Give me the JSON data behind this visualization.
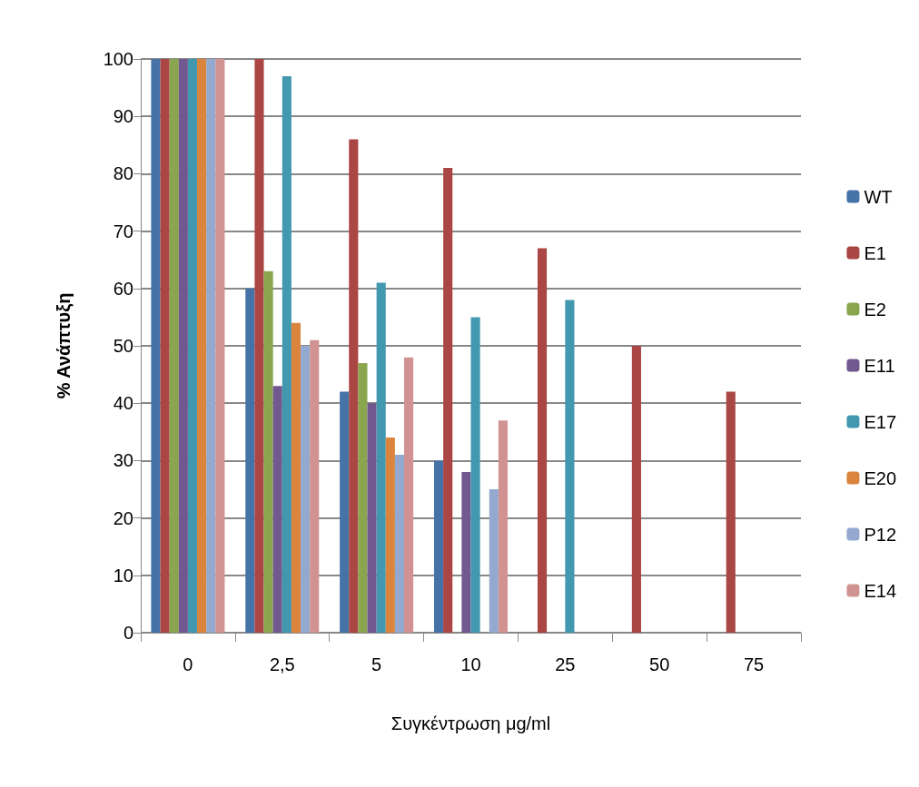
{
  "chart_data": {
    "type": "bar",
    "xlabel": "Συγκέντρωση μg/ml",
    "ylabel": "% Ανάπτυξη",
    "categories": [
      "0",
      "2,5",
      "5",
      "10",
      "25",
      "50",
      "75"
    ],
    "series": [
      {
        "name": "WT",
        "color": "#4572a7",
        "values": [
          100,
          60,
          42,
          30,
          0,
          0,
          0
        ]
      },
      {
        "name": "E1",
        "color": "#aa4643",
        "values": [
          100,
          100,
          86,
          81,
          67,
          50,
          42
        ]
      },
      {
        "name": "E2",
        "color": "#89a54e",
        "values": [
          100,
          63,
          47,
          0,
          0,
          0,
          0
        ]
      },
      {
        "name": "E11",
        "color": "#71588f",
        "values": [
          100,
          43,
          40,
          28,
          0,
          0,
          0
        ]
      },
      {
        "name": "E17",
        "color": "#4198af",
        "values": [
          100,
          97,
          61,
          55,
          58,
          0,
          0
        ]
      },
      {
        "name": "E20",
        "color": "#db843d",
        "values": [
          100,
          54,
          34,
          0,
          0,
          0,
          0
        ]
      },
      {
        "name": "P12",
        "color": "#93a9cf",
        "values": [
          100,
          50,
          31,
          25,
          0,
          0,
          0
        ]
      },
      {
        "name": "E14",
        "color": "#d19392",
        "values": [
          100,
          51,
          48,
          37,
          0,
          0,
          0
        ]
      }
    ],
    "ylim": [
      0,
      100
    ],
    "yticks": [
      0,
      10,
      20,
      30,
      40,
      50,
      60,
      70,
      80,
      90,
      100
    ],
    "grid": "y",
    "legend": "right"
  }
}
